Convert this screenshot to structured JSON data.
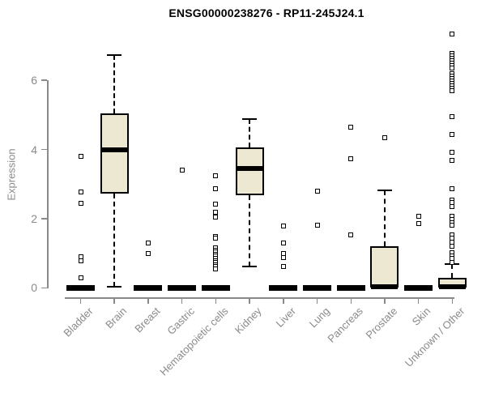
{
  "chart_data": {
    "type": "box",
    "title": "ENSG00000238276 - RP11-245J24.1",
    "xlabel": "",
    "ylabel": "Expression",
    "ylim": [
      0,
      7.5
    ],
    "y_ticks": [
      0,
      2,
      4,
      6
    ],
    "grid": false,
    "legend": "none",
    "box_fill_color": "#ede8d1",
    "box_border_color": "#000000",
    "axis_color": "#8a8a8a",
    "series": [
      {
        "label": "Bladder",
        "q1": 0,
        "median": 0,
        "q3": 0,
        "whisker_low": 0,
        "whisker_high": 0,
        "outliers": [
          3.8,
          2.77,
          2.45,
          0.9,
          0.78,
          0.29
        ]
      },
      {
        "label": "Brain",
        "q1": 2.72,
        "median": 4.0,
        "q3": 5.05,
        "whisker_low": 0.02,
        "whisker_high": 6.74,
        "outliers": []
      },
      {
        "label": "Breast",
        "q1": 0,
        "median": 0,
        "q3": 0,
        "whisker_low": 0,
        "whisker_high": 0,
        "outliers": [
          1.29,
          0.99
        ]
      },
      {
        "label": "Gastric",
        "q1": 0,
        "median": 0,
        "q3": 0,
        "whisker_low": 0,
        "whisker_high": 0,
        "outliers": [
          3.4
        ]
      },
      {
        "label": "Hematopoietic cells",
        "q1": 0,
        "median": 0,
        "q3": 0,
        "whisker_low": 0,
        "whisker_high": 0,
        "outliers": [
          3.25,
          2.86,
          2.43,
          2.18,
          2.04,
          1.49,
          1.43,
          1.15,
          1.09,
          1.03,
          0.97,
          0.91,
          0.85,
          0.79,
          0.73,
          0.67,
          0.61,
          0.55
        ]
      },
      {
        "label": "Kidney",
        "q1": 2.67,
        "median": 3.45,
        "q3": 4.05,
        "whisker_low": 0.62,
        "whisker_high": 4.87,
        "outliers": []
      },
      {
        "label": "Liver",
        "q1": 0,
        "median": 0,
        "q3": 0,
        "whisker_low": 0,
        "whisker_high": 0,
        "outliers": [
          1.79,
          1.29,
          1.0,
          0.88,
          0.62
        ]
      },
      {
        "label": "Lung",
        "q1": 0,
        "median": 0,
        "q3": 0,
        "whisker_low": 0,
        "whisker_high": 0,
        "outliers": [
          2.79,
          1.81
        ]
      },
      {
        "label": "Pancreas",
        "q1": 0,
        "median": 0,
        "q3": 0,
        "whisker_low": 0,
        "whisker_high": 0,
        "outliers": [
          4.64,
          3.73,
          1.54
        ]
      },
      {
        "label": "Prostate",
        "q1": 0,
        "median": 0.02,
        "q3": 1.21,
        "whisker_low": 0,
        "whisker_high": 2.82,
        "outliers": [
          4.33
        ]
      },
      {
        "label": "Skin",
        "q1": 0,
        "median": 0,
        "q3": 0,
        "whisker_low": 0,
        "whisker_high": 0,
        "outliers": [
          2.07,
          1.86
        ]
      },
      {
        "label": "Unknown / Other",
        "q1": 0,
        "median": 0.03,
        "q3": 0.28,
        "whisker_low": 0,
        "whisker_high": 0.69,
        "outliers": [
          7.34,
          6.77,
          6.7,
          6.63,
          6.56,
          6.49,
          6.42,
          6.35,
          6.18,
          6.11,
          6.04,
          5.97,
          5.9,
          5.83,
          5.76,
          5.69,
          4.95,
          4.44,
          3.91,
          3.68,
          2.86,
          2.54,
          2.46,
          2.36,
          2.07,
          1.97,
          1.87,
          1.8,
          1.53,
          1.43,
          1.33,
          1.21,
          1.02,
          0.93,
          0.84,
          0.74
        ]
      }
    ]
  }
}
